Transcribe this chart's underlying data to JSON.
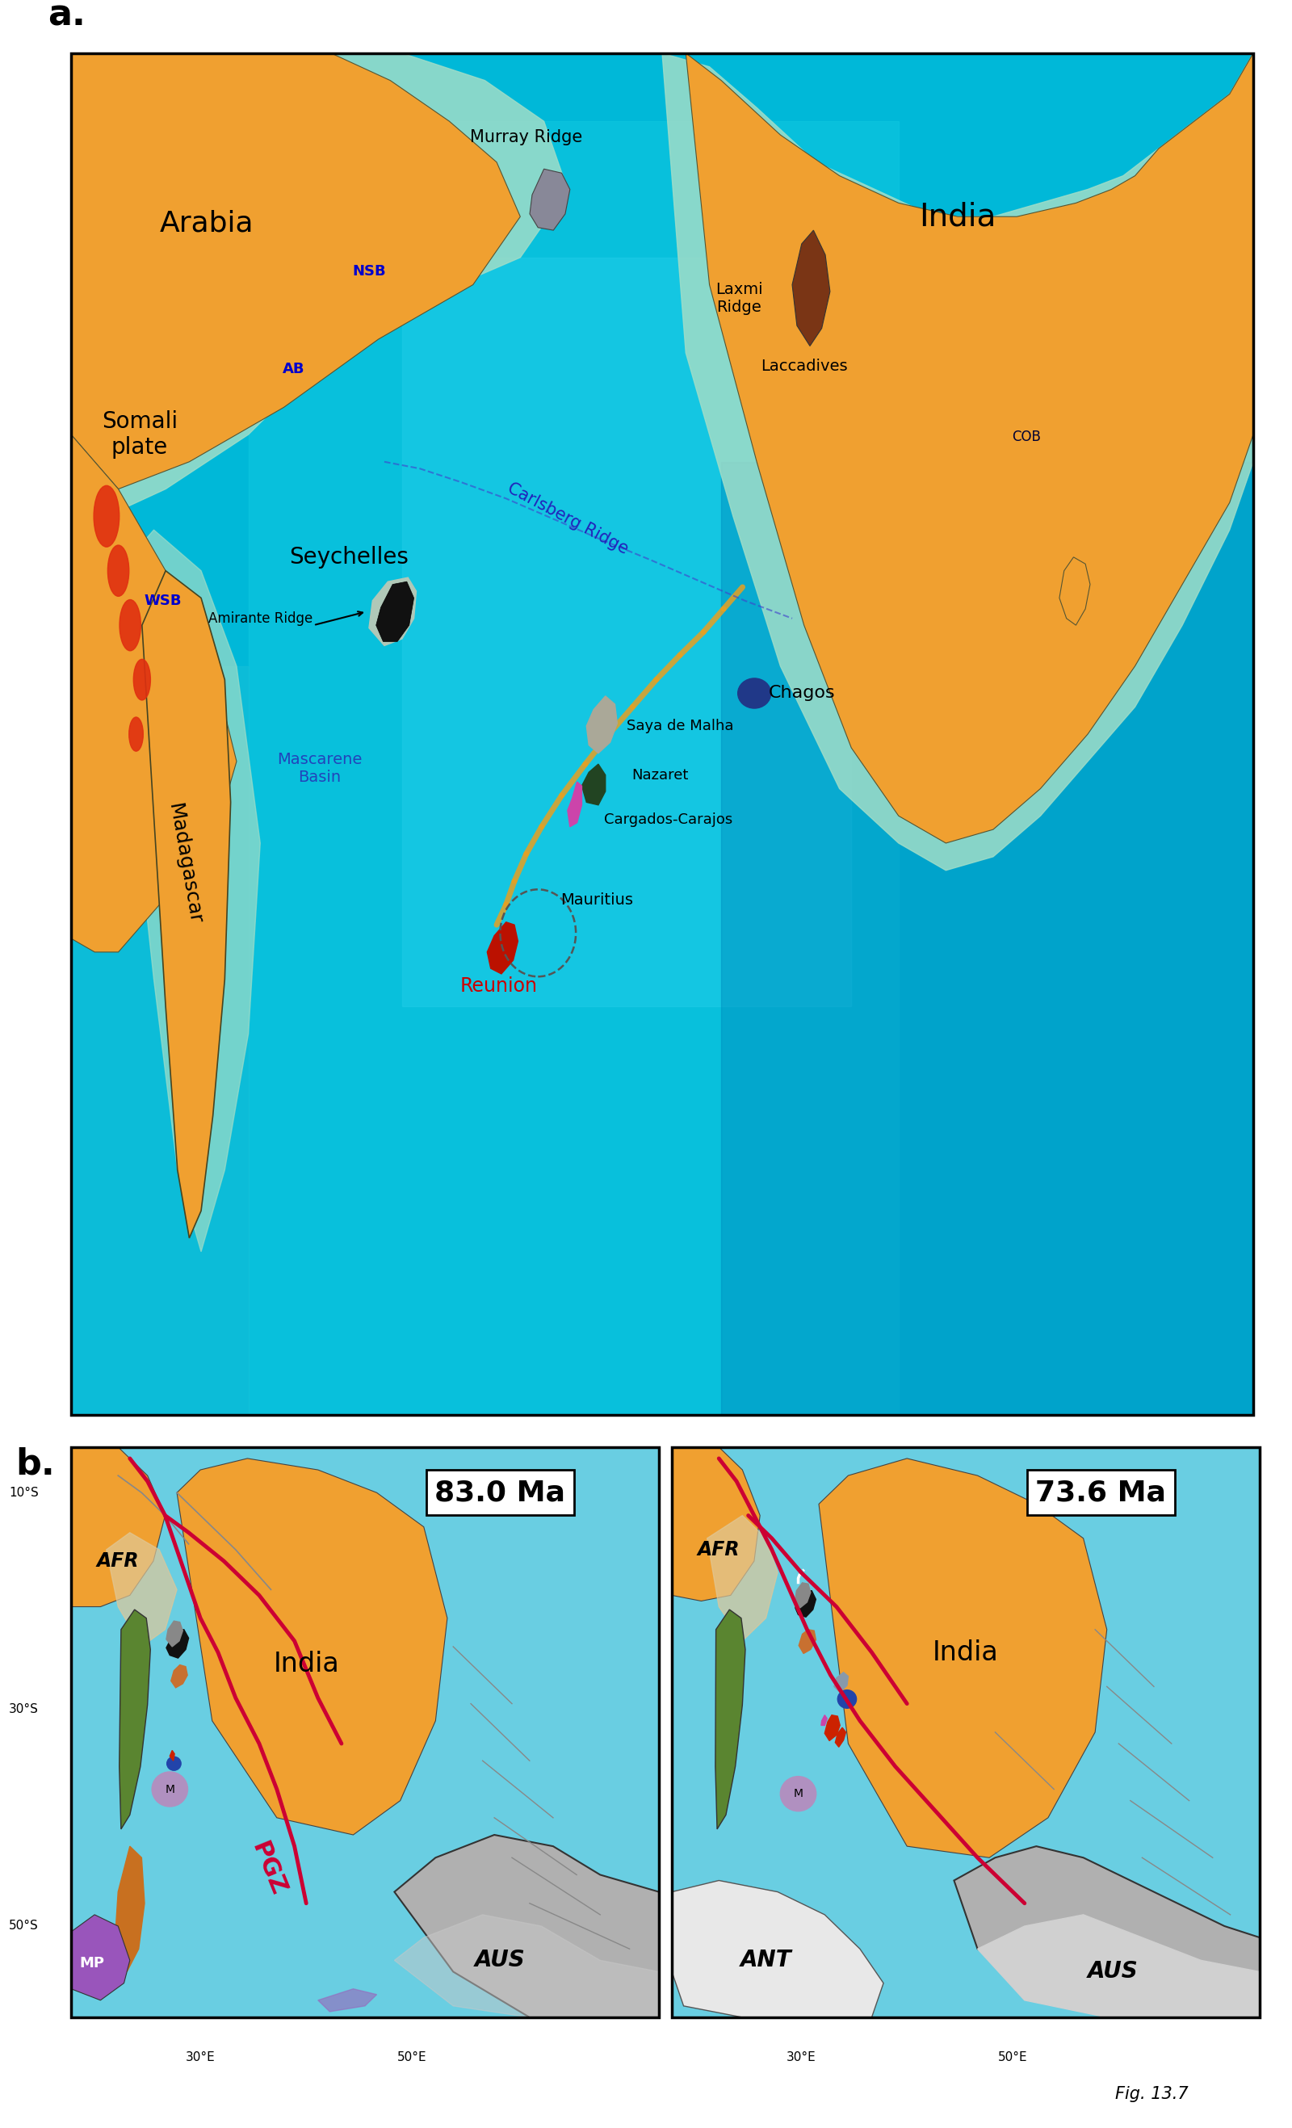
{
  "fig_width": 16.0,
  "fig_height": 26.35,
  "panel_a_label": "a.",
  "panel_b_label": "b.",
  "fig_label": "Fig. 13.7",
  "land_color": "#f0a030",
  "ocean_deep": "#00b0d0",
  "ocean_mid": "#30d0e0",
  "ocean_shallow": "#90e8d8",
  "shelf_color": "#b8e8d0",
  "green_land": "#5a8530",
  "purple_color": "#9966bb",
  "gray_aus": "#b0b0b0",
  "gray_ant": "#cccccc",
  "ridge_chain_color": "#f0a030",
  "red_boundary": "#cc0033",
  "black_land": "#111111",
  "brown_laxmi": "#7a3010",
  "gray_murray": "#888888",
  "blue_chagos": "#203080",
  "magenta_carg": "#cc44aa",
  "red_reunion": "#bb1100",
  "gray_saya": "#999988"
}
